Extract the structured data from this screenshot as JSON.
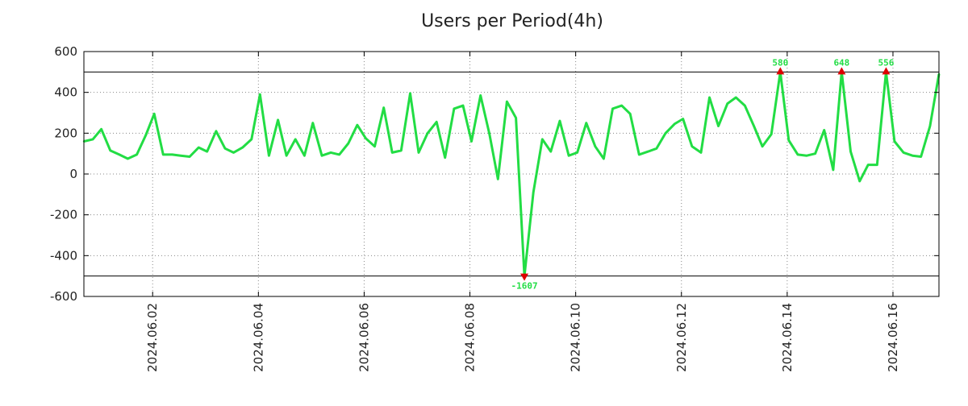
{
  "chart_data": {
    "type": "line",
    "title": "Users per Period(4h)",
    "xlabel": "",
    "ylabel": "",
    "ylim": [
      -600,
      600
    ],
    "y_ticks": [
      600,
      400,
      200,
      0,
      -200,
      -400,
      -600
    ],
    "y_tick_labels": [
      "600",
      "400",
      "200",
      "0",
      "-200",
      "-400",
      "-600"
    ],
    "clip_limits": [
      500,
      -500
    ],
    "x_tick_labels": [
      "2024.06.02",
      "2024.06.04",
      "2024.06.06",
      "2024.06.08",
      "2024.06.10",
      "2024.06.12",
      "2024.06.14",
      "2024.06.16"
    ],
    "x_tick_days": [
      2,
      4,
      6,
      8,
      10,
      12,
      14,
      16
    ],
    "x_range_days": [
      0.7,
      16.87
    ],
    "grid": true,
    "series": [
      {
        "name": "Users per Period(4h)",
        "color": "#22dd44",
        "x_days": [
          0.7,
          0.87,
          1.03,
          1.2,
          1.37,
          1.53,
          1.7,
          1.87,
          2.03,
          2.2,
          2.37,
          2.53,
          2.7,
          2.87,
          3.03,
          3.2,
          3.37,
          3.53,
          3.7,
          3.87,
          4.03,
          4.2,
          4.37,
          4.53,
          4.7,
          4.87,
          5.03,
          5.2,
          5.37,
          5.53,
          5.7,
          5.87,
          6.03,
          6.2,
          6.37,
          6.53,
          6.7,
          6.87,
          7.03,
          7.2,
          7.37,
          7.53,
          7.7,
          7.87,
          8.03,
          8.2,
          8.37,
          8.53,
          8.7,
          8.87,
          9.03,
          9.2,
          9.37,
          9.53,
          9.7,
          9.87,
          10.03,
          10.2,
          10.37,
          10.53,
          10.7,
          10.87,
          11.03,
          11.2,
          11.37,
          11.53,
          11.7,
          11.87,
          12.03,
          12.2,
          12.37,
          12.53,
          12.7,
          12.87,
          13.03,
          13.2,
          13.37,
          13.53,
          13.7,
          13.87,
          14.03,
          14.2,
          14.37,
          14.53,
          14.7,
          14.87,
          15.03,
          15.2,
          15.37,
          15.53,
          15.7,
          15.87,
          16.03,
          16.2,
          16.37,
          16.53,
          16.7,
          16.87
        ],
        "values": [
          160,
          170,
          220,
          115,
          95,
          75,
          95,
          190,
          295,
          95,
          95,
          90,
          85,
          130,
          110,
          210,
          125,
          105,
          130,
          170,
          390,
          90,
          265,
          90,
          170,
          90,
          250,
          90,
          105,
          95,
          150,
          240,
          175,
          135,
          325,
          105,
          115,
          395,
          105,
          200,
          255,
          80,
          320,
          335,
          160,
          385,
          195,
          -25,
          355,
          275,
          -1607,
          -90,
          170,
          110,
          260,
          90,
          105,
          250,
          135,
          75,
          320,
          335,
          295,
          95,
          110,
          125,
          200,
          245,
          270,
          135,
          105,
          375,
          235,
          345,
          375,
          335,
          235,
          135,
          195,
          580,
          165,
          95,
          90,
          100,
          215,
          20,
          648,
          110,
          -35,
          45,
          45,
          556,
          160,
          105,
          90,
          85,
          235,
          490
        ]
      }
    ],
    "annotations": [
      {
        "x_day": 13.87,
        "value": 580,
        "label": "580",
        "direction": "up"
      },
      {
        "x_day": 15.03,
        "value": 648,
        "label": "648",
        "direction": "up"
      },
      {
        "x_day": 15.87,
        "value": 556,
        "label": "556",
        "direction": "up"
      },
      {
        "x_day": 9.03,
        "value": -1607,
        "label": "-1607",
        "direction": "down"
      }
    ],
    "colors": {
      "line": "#22dd44",
      "marker": "#dd0000",
      "label": "#22dd44",
      "grid": "#888888",
      "axis": "#000000"
    }
  }
}
